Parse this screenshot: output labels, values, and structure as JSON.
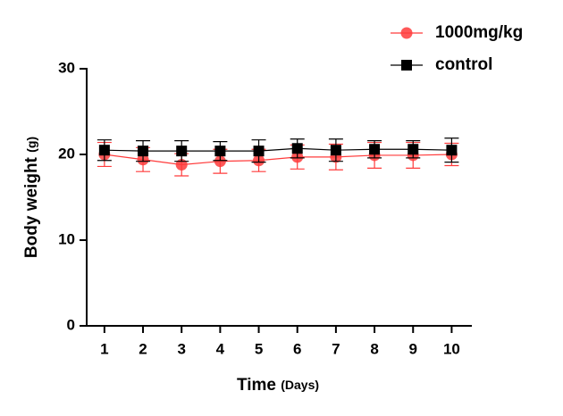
{
  "chart_data": {
    "type": "line",
    "x": [
      1,
      2,
      3,
      4,
      5,
      6,
      7,
      8,
      9,
      10
    ],
    "xlim": [
      0.54,
      10.5
    ],
    "xticks": [
      1,
      2,
      3,
      4,
      5,
      6,
      7,
      8,
      9,
      10
    ],
    "ylim": [
      0,
      30
    ],
    "yticks": [
      0,
      10,
      20,
      30
    ],
    "xlabel": "Time",
    "xlabel_unit": "(Days)",
    "ylabel": "Body weight",
    "ylabel_unit": "(g)",
    "grid": false,
    "legend": "top-right",
    "series": [
      {
        "name": "1000mg/kg",
        "color": "#ff3b3b",
        "marker": "circle",
        "values": [
          20.0,
          19.4,
          18.8,
          19.2,
          19.3,
          19.7,
          19.7,
          19.9,
          19.9,
          20.0
        ],
        "errors": [
          1.4,
          1.4,
          1.3,
          1.4,
          1.3,
          1.4,
          1.5,
          1.5,
          1.5,
          1.3
        ]
      },
      {
        "name": "control",
        "color": "#000000",
        "marker": "square",
        "values": [
          20.5,
          20.4,
          20.4,
          20.4,
          20.4,
          20.7,
          20.5,
          20.6,
          20.6,
          20.5
        ],
        "errors": [
          1.2,
          1.2,
          1.2,
          1.1,
          1.3,
          1.1,
          1.3,
          1.0,
          1.0,
          1.4
        ]
      }
    ]
  }
}
